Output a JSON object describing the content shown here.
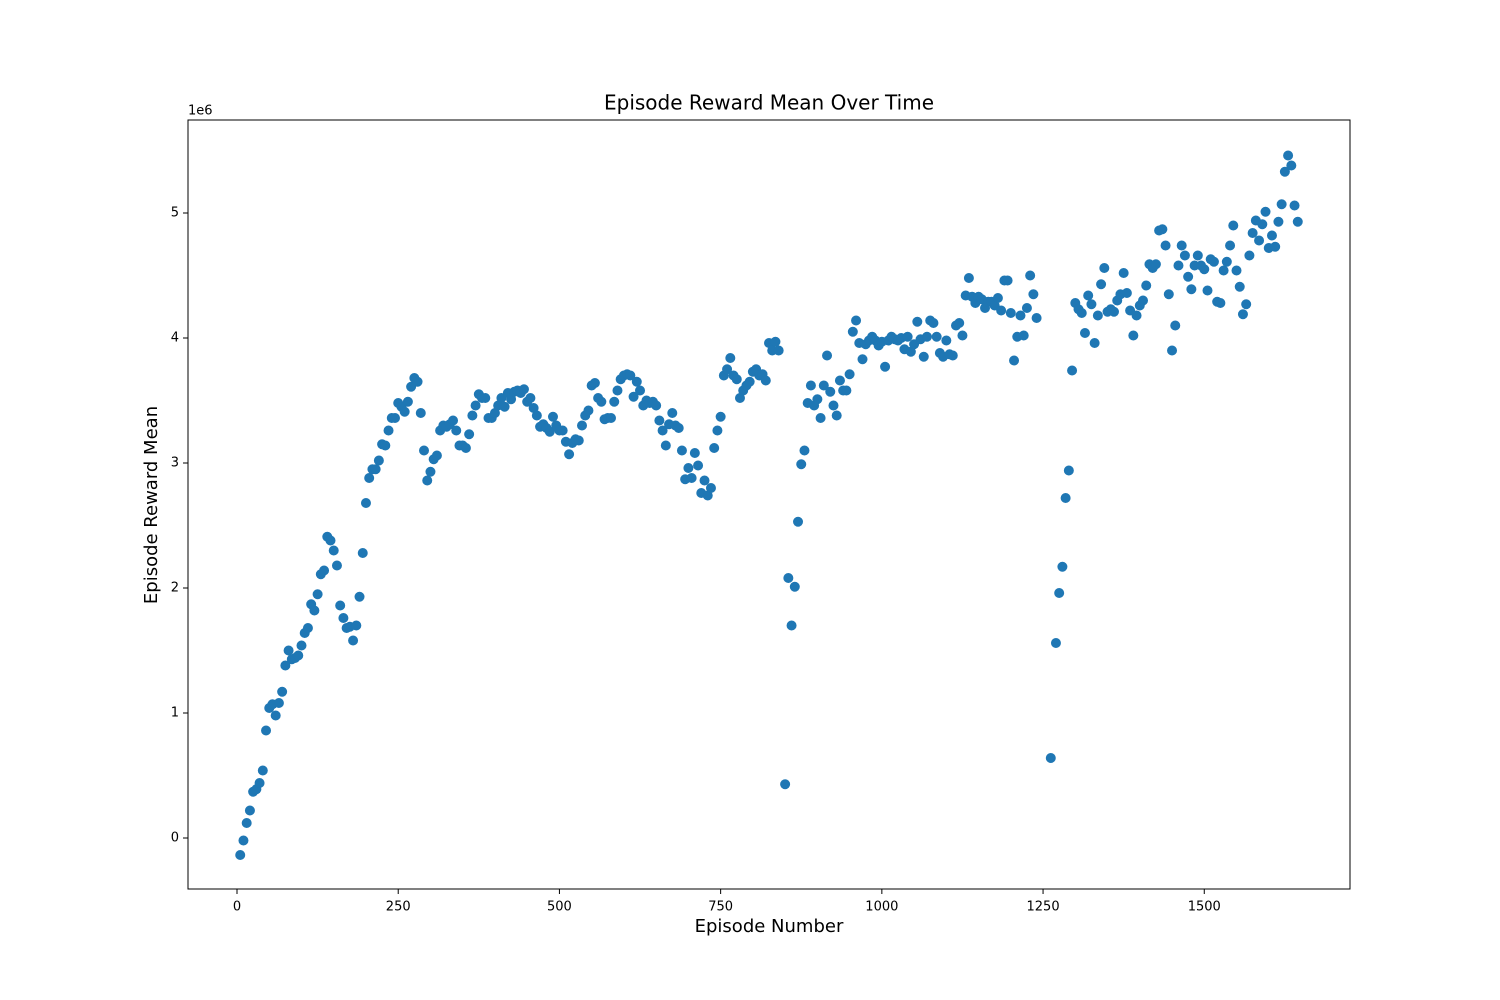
{
  "chart_data": {
    "type": "scatter",
    "title": "Episode Reward Mean Over Time",
    "x_label": "Episode Number",
    "y_label": "Episode Reward Mean",
    "y_offset_label": "1e6",
    "color": "#1f77b4",
    "xlim": [
      -76,
      1726
    ],
    "ylim": [
      -408000.0,
      5744000.0
    ],
    "xticks": [
      0,
      250,
      500,
      750,
      1000,
      1250,
      1500
    ],
    "yticks": [
      0,
      {
        "value": 1000000,
        "label": "1"
      },
      {
        "value": 2000000,
        "label": "2"
      },
      {
        "value": 3000000,
        "label": "3"
      },
      {
        "value": 4000000,
        "label": "4"
      },
      {
        "value": 5000000,
        "label": "5"
      }
    ],
    "x": [
      5,
      10,
      15,
      20,
      25,
      30,
      35,
      40,
      45,
      50,
      55,
      60,
      65,
      70,
      75,
      80,
      85,
      90,
      95,
      100,
      105,
      110,
      115,
      120,
      125,
      130,
      135,
      140,
      145,
      150,
      155,
      160,
      165,
      170,
      175,
      180,
      185,
      190,
      195,
      200,
      205,
      210,
      215,
      220,
      225,
      230,
      235,
      240,
      245,
      250,
      255,
      260,
      265,
      270,
      275,
      280,
      285,
      290,
      295,
      300,
      305,
      310,
      315,
      320,
      325,
      330,
      335,
      340,
      345,
      350,
      355,
      360,
      365,
      370,
      375,
      380,
      385,
      390,
      395,
      400,
      405,
      410,
      415,
      420,
      425,
      430,
      435,
      440,
      445,
      450,
      455,
      460,
      465,
      470,
      475,
      480,
      485,
      490,
      495,
      500,
      505,
      510,
      515,
      520,
      525,
      530,
      535,
      540,
      545,
      550,
      555,
      560,
      565,
      570,
      575,
      580,
      585,
      590,
      595,
      600,
      605,
      610,
      615,
      620,
      625,
      630,
      635,
      640,
      645,
      650,
      655,
      660,
      665,
      670,
      675,
      680,
      685,
      690,
      695,
      700,
      705,
      710,
      715,
      720,
      725,
      730,
      735,
      740,
      745,
      750,
      755,
      760,
      765,
      770,
      775,
      780,
      785,
      790,
      795,
      800,
      805,
      810,
      815,
      820,
      825,
      830,
      835,
      840,
      850,
      855,
      860,
      865,
      870,
      875,
      880,
      885,
      890,
      895,
      900,
      905,
      910,
      915,
      920,
      925,
      930,
      935,
      940,
      945,
      950,
      955,
      960,
      965,
      970,
      975,
      980,
      985,
      990,
      995,
      1000,
      1005,
      1010,
      1015,
      1020,
      1025,
      1030,
      1035,
      1040,
      1045,
      1050,
      1055,
      1060,
      1065,
      1070,
      1075,
      1080,
      1085,
      1090,
      1095,
      1100,
      1105,
      1110,
      1115,
      1120,
      1125,
      1130,
      1135,
      1140,
      1145,
      1150,
      1155,
      1160,
      1165,
      1170,
      1175,
      1180,
      1185,
      1190,
      1195,
      1200,
      1205,
      1210,
      1215,
      1220,
      1225,
      1230,
      1235,
      1240,
      1262,
      1270,
      1275,
      1280,
      1285,
      1290,
      1295,
      1300,
      1305,
      1310,
      1315,
      1320,
      1325,
      1330,
      1335,
      1340,
      1345,
      1350,
      1355,
      1360,
      1365,
      1370,
      1375,
      1380,
      1385,
      1390,
      1395,
      1400,
      1405,
      1410,
      1415,
      1420,
      1425,
      1430,
      1435,
      1440,
      1445,
      1450,
      1455,
      1460,
      1465,
      1470,
      1475,
      1480,
      1485,
      1490,
      1495,
      1500,
      1505,
      1510,
      1515,
      1520,
      1525,
      1530,
      1535,
      1540,
      1545,
      1550,
      1555,
      1560,
      1565,
      1570,
      1575,
      1580,
      1585,
      1590,
      1595,
      1600,
      1605,
      1610,
      1615,
      1620,
      1625,
      1630,
      1635,
      1640,
      1645
    ],
    "values": [
      -136000.0,
      -20000.0,
      120000.0,
      220000.0,
      370000.0,
      390000.0,
      440000.0,
      540000.0,
      860000.0,
      1040000.0,
      1070000.0,
      980000.0,
      1080000.0,
      1170000.0,
      1380000.0,
      1500000.0,
      1430000.0,
      1440000.0,
      1460000.0,
      1540000.0,
      1640000.0,
      1680000.0,
      1870000.0,
      1820000.0,
      1950000.0,
      2110000.0,
      2140000.0,
      2410000.0,
      2380000.0,
      2300000.0,
      2180000.0,
      1860000.0,
      1760000.0,
      1680000.0,
      1690000.0,
      1580000.0,
      1700000.0,
      1930000.0,
      2280000.0,
      2680000.0,
      2880000.0,
      2950000.0,
      2950000.0,
      3020000.0,
      3150000.0,
      3140000.0,
      3260000.0,
      3360000.0,
      3360000.0,
      3480000.0,
      3450000.0,
      3410000.0,
      3490000.0,
      3610000.0,
      3680000.0,
      3650000.0,
      3400000.0,
      3100000.0,
      2860000.0,
      2930000.0,
      3030000.0,
      3060000.0,
      3260000.0,
      3300000.0,
      3290000.0,
      3310000.0,
      3340000.0,
      3260000.0,
      3140000.0,
      3140000.0,
      3120000.0,
      3230000.0,
      3380000.0,
      3460000.0,
      3550000.0,
      3520000.0,
      3520000.0,
      3360000.0,
      3360000.0,
      3400000.0,
      3460000.0,
      3520000.0,
      3450000.0,
      3560000.0,
      3510000.0,
      3570000.0,
      3580000.0,
      3560000.0,
      3590000.0,
      3490000.0,
      3520000.0,
      3440000.0,
      3380000.0,
      3290000.0,
      3310000.0,
      3280000.0,
      3250000.0,
      3370000.0,
      3300000.0,
      3260000.0,
      3260000.0,
      3170000.0,
      3070000.0,
      3160000.0,
      3190000.0,
      3180000.0,
      3300000.0,
      3380000.0,
      3420000.0,
      3620000.0,
      3640000.0,
      3520000.0,
      3490000.0,
      3350000.0,
      3360000.0,
      3360000.0,
      3490000.0,
      3580000.0,
      3670000.0,
      3700000.0,
      3710000.0,
      3700000.0,
      3530000.0,
      3650000.0,
      3580000.0,
      3460000.0,
      3500000.0,
      3480000.0,
      3490000.0,
      3460000.0,
      3340000.0,
      3260000.0,
      3140000.0,
      3310000.0,
      3400000.0,
      3300000.0,
      3280000.0,
      3100000.0,
      2870000.0,
      2960000.0,
      2880000.0,
      3080000.0,
      2980000.0,
      2760000.0,
      2860000.0,
      2740000.0,
      2800000.0,
      3120000.0,
      3260000.0,
      3370000.0,
      3700000.0,
      3750000.0,
      3840000.0,
      3700000.0,
      3670000.0,
      3520000.0,
      3580000.0,
      3620000.0,
      3650000.0,
      3730000.0,
      3750000.0,
      3700000.0,
      3710000.0,
      3660000.0,
      3960000.0,
      3900000.0,
      3970000.0,
      3900000.0,
      430000.0,
      2080000.0,
      1700000.0,
      2010000.0,
      2530000.0,
      2990000.0,
      3100000.0,
      3480000.0,
      3620000.0,
      3460000.0,
      3510000.0,
      3360000.0,
      3620000.0,
      3860000.0,
      3570000.0,
      3460000.0,
      3380000.0,
      3660000.0,
      3580000.0,
      3580000.0,
      3710000.0,
      4050000.0,
      4140000.0,
      3960000.0,
      3830000.0,
      3950000.0,
      3980000.0,
      4010000.0,
      3980000.0,
      3940000.0,
      3970000.0,
      3770000.0,
      3980000.0,
      4010000.0,
      3990000.0,
      3980000.0,
      4000000.0,
      3910000.0,
      4010000.0,
      3890000.0,
      3950000.0,
      4130000.0,
      3990000.0,
      3850000.0,
      4010000.0,
      4140000.0,
      4120000.0,
      4010000.0,
      3880000.0,
      3850000.0,
      3980000.0,
      3870000.0,
      3860000.0,
      4100000.0,
      4120000.0,
      4020000.0,
      4340000.0,
      4480000.0,
      4330000.0,
      4280000.0,
      4330000.0,
      4310000.0,
      4240000.0,
      4290000.0,
      4290000.0,
      4260000.0,
      4320000.0,
      4220000.0,
      4460000.0,
      4460000.0,
      4200000.0,
      3820000.0,
      4010000.0,
      4180000.0,
      4020000.0,
      4240000.0,
      4500000.0,
      4350000.0,
      4160000.0,
      640000.0,
      1560000.0,
      1960000.0,
      2170000.0,
      2720000.0,
      2940000.0,
      3740000.0,
      4280000.0,
      4230000.0,
      4200000.0,
      4040000.0,
      4340000.0,
      4270000.0,
      3960000.0,
      4180000.0,
      4430000.0,
      4560000.0,
      4210000.0,
      4230000.0,
      4210000.0,
      4300000.0,
      4350000.0,
      4520000.0,
      4360000.0,
      4220000.0,
      4020000.0,
      4180000.0,
      4260000.0,
      4300000.0,
      4420000.0,
      4590000.0,
      4560000.0,
      4590000.0,
      4860000.0,
      4870000.0,
      4740000.0,
      4350000.0,
      3900000.0,
      4100000.0,
      4580000.0,
      4740000.0,
      4660000.0,
      4490000.0,
      4390000.0,
      4580000.0,
      4660000.0,
      4580000.0,
      4550000.0,
      4380000.0,
      4630000.0,
      4610000.0,
      4290000.0,
      4280000.0,
      4540000.0,
      4610000.0,
      4740000.0,
      4900000.0,
      4540000.0,
      4410000.0,
      4190000.0,
      4270000.0,
      4660000.0,
      4840000.0,
      4940000.0,
      4780000.0,
      4910000.0,
      5010000.0,
      4720000.0,
      4820000.0,
      4730000.0,
      4930000.0,
      5070000.0,
      5330000.0,
      5460000.0,
      5380000.0,
      5060000.0,
      4930000.0
    ]
  }
}
